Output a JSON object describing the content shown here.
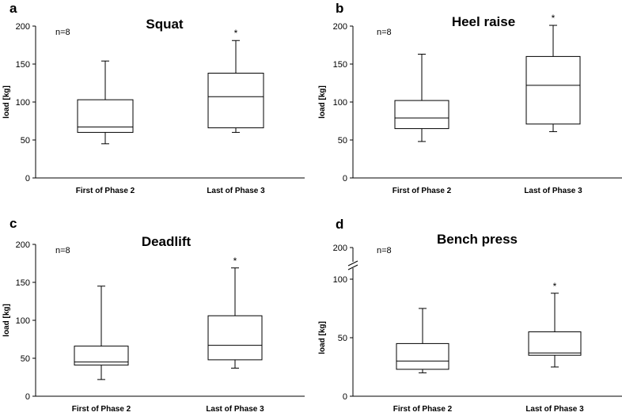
{
  "chart_data": [
    {
      "type": "box",
      "panel_letter": "a",
      "title": "Squat",
      "ylabel": "load [kg]",
      "n_label": "n=8",
      "ylim": [
        0,
        200
      ],
      "yticks": [
        "0",
        "50",
        "100",
        "150",
        "200"
      ],
      "categories": [
        "First of Phase 2",
        "Last of Phase 3"
      ],
      "boxes": [
        {
          "min": 45,
          "q1": 60,
          "median": 67,
          "q3": 103,
          "max": 154,
          "sig": ""
        },
        {
          "min": 60,
          "q1": 66,
          "median": 107,
          "q3": 138,
          "max": 181,
          "sig": "*"
        }
      ]
    },
    {
      "type": "box",
      "panel_letter": "b",
      "title": "Heel raise",
      "ylabel": "load [kg]",
      "n_label": "n=8",
      "ylim": [
        0,
        200
      ],
      "yticks": [
        "0",
        "50",
        "100",
        "150",
        "200"
      ],
      "categories": [
        "First of Phase 2",
        "Last of Phase 3"
      ],
      "boxes": [
        {
          "min": 48,
          "q1": 65,
          "median": 79,
          "q3": 102,
          "max": 163,
          "sig": ""
        },
        {
          "min": 61,
          "q1": 71,
          "median": 122,
          "q3": 160,
          "max": 201,
          "sig": "*"
        }
      ]
    },
    {
      "type": "box",
      "panel_letter": "c",
      "title": "Deadlift",
      "ylabel": "load [kg]",
      "n_label": "n=8",
      "ylim": [
        0,
        200
      ],
      "yticks": [
        "0",
        "50",
        "100",
        "150",
        "200"
      ],
      "categories": [
        "First of Phase 2",
        "Last of Phase 3"
      ],
      "boxes": [
        {
          "min": 22,
          "q1": 41,
          "median": 45,
          "q3": 66,
          "max": 145,
          "sig": ""
        },
        {
          "min": 37,
          "q1": 48,
          "median": 67,
          "q3": 106,
          "max": 169,
          "sig": "*"
        }
      ]
    },
    {
      "type": "box",
      "panel_letter": "d",
      "title": "Bench press",
      "ylabel": "load [kg]",
      "n_label": "n=8",
      "ylim": [
        0,
        100
      ],
      "axis_break": true,
      "break_label": "200",
      "yticks": [
        "0",
        "50",
        "100"
      ],
      "categories": [
        "First of Phase 2",
        "Last of Phase 3"
      ],
      "boxes": [
        {
          "min": 20,
          "q1": 23,
          "median": 30,
          "q3": 45,
          "max": 75,
          "sig": ""
        },
        {
          "min": 25,
          "q1": 35,
          "median": 37,
          "q3": 55,
          "max": 88,
          "sig": "*"
        }
      ]
    }
  ]
}
